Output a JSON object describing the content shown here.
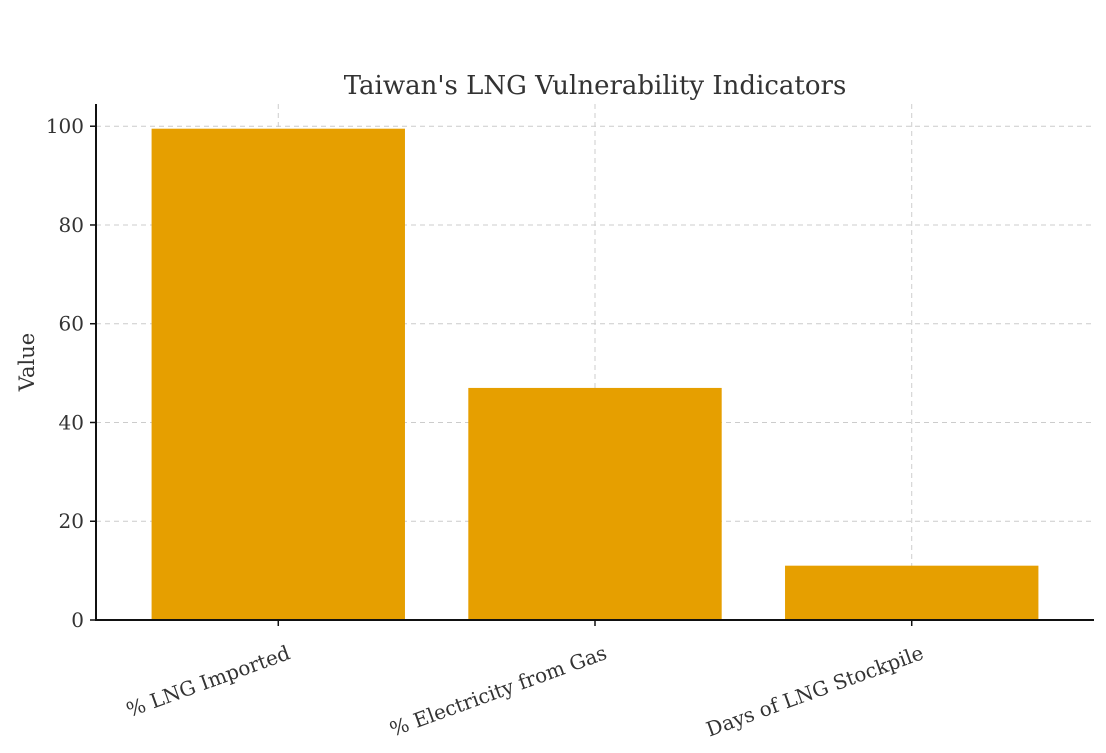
{
  "chart_data": {
    "type": "bar",
    "title": "Taiwan's LNG Vulnerability Indicators",
    "xlabel": "",
    "ylabel": "Value",
    "categories": [
      "% LNG Imported",
      "% Electricity from Gas",
      "Days of LNG Stockpile"
    ],
    "values": [
      99.5,
      47,
      11
    ],
    "ylim": [
      0,
      104.5
    ],
    "yticks": [
      0,
      20,
      40,
      60,
      80,
      100
    ],
    "bar_color": "#E69F00",
    "grid": true
  }
}
